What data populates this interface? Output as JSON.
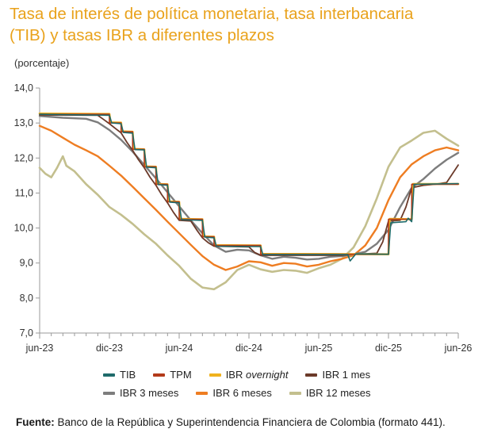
{
  "title_line1": "Tasa de interés de política monetaria, tasa interbancaria",
  "title_line2": "(TIB) y tasas IBR a diferentes plazos",
  "source_label": "Fuente:",
  "source_text": "Banco de la República y Superintendencia Financiera de Colombia (formato 441).",
  "chart_data": {
    "type": "line",
    "ylabel": "(porcentaje)",
    "ylim": [
      7.0,
      14.0
    ],
    "yticks": [
      "7,0",
      "8,0",
      "9,0",
      "10,0",
      "11,0",
      "12,0",
      "13,0",
      "14,0"
    ],
    "xticks": [
      "jun-23",
      "dic-23",
      "jun-24",
      "dic-24",
      "jun-25",
      "dic-25",
      "jun-26"
    ],
    "xrange_months": [
      "2023-06",
      "2026-06"
    ],
    "grid": false,
    "legend_position": "bottom",
    "series": [
      {
        "name": "TIB",
        "color": "#1f6b6b",
        "width": 1.6,
        "points": [
          [
            0,
            13.25
          ],
          [
            6,
            13.22
          ],
          [
            6.2,
            13.0
          ],
          [
            7,
            12.98
          ],
          [
            7.2,
            12.73
          ],
          [
            8,
            12.71
          ],
          [
            8.2,
            12.24
          ],
          [
            9,
            12.23
          ],
          [
            9.2,
            11.74
          ],
          [
            10,
            11.72
          ],
          [
            10.2,
            11.24
          ],
          [
            11,
            11.22
          ],
          [
            11.2,
            10.74
          ],
          [
            12,
            10.72
          ],
          [
            12.2,
            10.24
          ],
          [
            14,
            10.22
          ],
          [
            14.2,
            9.74
          ],
          [
            15,
            9.72
          ],
          [
            15.2,
            9.48
          ],
          [
            19,
            9.47
          ],
          [
            19.2,
            9.24
          ],
          [
            26.5,
            9.24
          ],
          [
            26.7,
            9.06
          ],
          [
            27,
            9.18
          ],
          [
            27.2,
            9.26
          ],
          [
            30,
            9.25
          ],
          [
            30.2,
            10.15
          ],
          [
            31.5,
            10.18
          ],
          [
            31.7,
            10.28
          ],
          [
            32,
            10.18
          ],
          [
            32.2,
            11.25
          ],
          [
            36,
            11.27
          ]
        ]
      },
      {
        "name": "TPM",
        "color": "#b33a1a",
        "width": 1.6,
        "points": [
          [
            0,
            13.25
          ],
          [
            6,
            13.25
          ],
          [
            6,
            13.0
          ],
          [
            7,
            13.0
          ],
          [
            7,
            12.75
          ],
          [
            8,
            12.75
          ],
          [
            8,
            12.25
          ],
          [
            9,
            12.25
          ],
          [
            9,
            11.75
          ],
          [
            10,
            11.75
          ],
          [
            10,
            11.25
          ],
          [
            11,
            11.25
          ],
          [
            11,
            10.75
          ],
          [
            12,
            10.75
          ],
          [
            12,
            10.25
          ],
          [
            14,
            10.25
          ],
          [
            14,
            9.75
          ],
          [
            15,
            9.75
          ],
          [
            15,
            9.5
          ],
          [
            19,
            9.5
          ],
          [
            19,
            9.25
          ],
          [
            30,
            9.25
          ],
          [
            30,
            10.25
          ],
          [
            32,
            10.25
          ],
          [
            32,
            11.25
          ],
          [
            36,
            11.25
          ]
        ]
      },
      {
        "name": "IBR overnight",
        "color": "#f0b21e",
        "width": 2.6,
        "points": [
          [
            0,
            13.27
          ],
          [
            6,
            13.26
          ],
          [
            6.1,
            13.02
          ],
          [
            7,
            13.01
          ],
          [
            7.1,
            12.76
          ],
          [
            8,
            12.75
          ],
          [
            8.1,
            12.26
          ],
          [
            9,
            12.25
          ],
          [
            9.1,
            11.76
          ],
          [
            10,
            11.75
          ],
          [
            10.1,
            11.26
          ],
          [
            11,
            11.25
          ],
          [
            11.1,
            10.76
          ],
          [
            12,
            10.75
          ],
          [
            12.1,
            10.26
          ],
          [
            14,
            10.25
          ],
          [
            14.1,
            9.76
          ],
          [
            15,
            9.75
          ],
          [
            15.1,
            9.51
          ],
          [
            19,
            9.5
          ],
          [
            19.1,
            9.26
          ],
          [
            30,
            9.25
          ],
          [
            30.1,
            10.26
          ],
          [
            32,
            10.25
          ],
          [
            32.1,
            11.26
          ],
          [
            36,
            11.26
          ]
        ]
      },
      {
        "name": "IBR 1 mes",
        "color": "#6b3a2a",
        "width": 1.8,
        "points": [
          [
            0,
            13.23
          ],
          [
            5,
            13.22
          ],
          [
            5.5,
            13.1
          ],
          [
            6,
            12.98
          ],
          [
            6.5,
            12.85
          ],
          [
            7,
            12.72
          ],
          [
            7.5,
            12.45
          ],
          [
            8,
            12.22
          ],
          [
            8.5,
            11.95
          ],
          [
            9,
            11.72
          ],
          [
            9.5,
            11.45
          ],
          [
            10,
            11.22
          ],
          [
            10.5,
            10.95
          ],
          [
            11,
            10.72
          ],
          [
            11.5,
            10.45
          ],
          [
            12,
            10.22
          ],
          [
            13,
            10.2
          ],
          [
            13.5,
            9.95
          ],
          [
            14,
            9.72
          ],
          [
            14.5,
            9.58
          ],
          [
            15,
            9.48
          ],
          [
            18,
            9.46
          ],
          [
            18.5,
            9.3
          ],
          [
            19,
            9.22
          ],
          [
            26,
            9.22
          ],
          [
            27,
            9.25
          ],
          [
            28,
            9.26
          ],
          [
            29,
            9.28
          ],
          [
            29.5,
            9.6
          ],
          [
            30,
            10.2
          ],
          [
            31,
            10.22
          ],
          [
            31.5,
            10.6
          ],
          [
            32,
            11.15
          ],
          [
            33,
            11.22
          ],
          [
            34,
            11.25
          ],
          [
            35,
            11.3
          ],
          [
            35.5,
            11.55
          ],
          [
            36,
            11.8
          ]
        ]
      },
      {
        "name": "IBR 3 meses",
        "color": "#7d7d7d",
        "width": 2.4,
        "points": [
          [
            0,
            13.2
          ],
          [
            2,
            13.15
          ],
          [
            4,
            13.12
          ],
          [
            5,
            13.02
          ],
          [
            6,
            12.8
          ],
          [
            7,
            12.52
          ],
          [
            8,
            12.18
          ],
          [
            9,
            11.8
          ],
          [
            10,
            11.42
          ],
          [
            11,
            11.02
          ],
          [
            12,
            10.62
          ],
          [
            13,
            10.22
          ],
          [
            14,
            9.85
          ],
          [
            15,
            9.5
          ],
          [
            16,
            9.32
          ],
          [
            17,
            9.38
          ],
          [
            18,
            9.36
          ],
          [
            19,
            9.22
          ],
          [
            20,
            9.12
          ],
          [
            21,
            9.18
          ],
          [
            22,
            9.15
          ],
          [
            23,
            9.1
          ],
          [
            24,
            9.12
          ],
          [
            25,
            9.18
          ],
          [
            26,
            9.2
          ],
          [
            27,
            9.25
          ],
          [
            28,
            9.32
          ],
          [
            29,
            9.55
          ],
          [
            30,
            9.95
          ],
          [
            31,
            10.6
          ],
          [
            32,
            11.15
          ],
          [
            33,
            11.4
          ],
          [
            34,
            11.7
          ],
          [
            35,
            11.95
          ],
          [
            36,
            12.15
          ]
        ]
      },
      {
        "name": "IBR 6 meses",
        "color": "#ee7d22",
        "width": 2.4,
        "points": [
          [
            0,
            12.92
          ],
          [
            1,
            12.78
          ],
          [
            2,
            12.58
          ],
          [
            3,
            12.38
          ],
          [
            4,
            12.22
          ],
          [
            5,
            12.05
          ],
          [
            6,
            11.78
          ],
          [
            7,
            11.5
          ],
          [
            8,
            11.18
          ],
          [
            9,
            10.85
          ],
          [
            10,
            10.52
          ],
          [
            11,
            10.18
          ],
          [
            12,
            9.85
          ],
          [
            13,
            9.52
          ],
          [
            14,
            9.2
          ],
          [
            15,
            8.95
          ],
          [
            16,
            8.8
          ],
          [
            17,
            8.9
          ],
          [
            18,
            9.05
          ],
          [
            19,
            9.02
          ],
          [
            20,
            8.92
          ],
          [
            21,
            9.0
          ],
          [
            22,
            8.98
          ],
          [
            23,
            8.9
          ],
          [
            24,
            8.95
          ],
          [
            25,
            9.05
          ],
          [
            26,
            9.12
          ],
          [
            27,
            9.22
          ],
          [
            28,
            9.5
          ],
          [
            29,
            10.0
          ],
          [
            30,
            10.8
          ],
          [
            31,
            11.45
          ],
          [
            32,
            11.82
          ],
          [
            33,
            12.05
          ],
          [
            34,
            12.22
          ],
          [
            35,
            12.3
          ],
          [
            36,
            12.22
          ]
        ]
      },
      {
        "name": "IBR 12 meses",
        "color": "#c3bf8e",
        "width": 2.6,
        "points": [
          [
            0,
            11.72
          ],
          [
            0.5,
            11.55
          ],
          [
            1,
            11.45
          ],
          [
            1.5,
            11.72
          ],
          [
            2,
            12.05
          ],
          [
            2.3,
            11.78
          ],
          [
            3,
            11.62
          ],
          [
            4,
            11.25
          ],
          [
            5,
            10.95
          ],
          [
            6,
            10.6
          ],
          [
            7,
            10.38
          ],
          [
            8,
            10.12
          ],
          [
            9,
            9.82
          ],
          [
            10,
            9.55
          ],
          [
            11,
            9.22
          ],
          [
            12,
            8.92
          ],
          [
            13,
            8.55
          ],
          [
            14,
            8.3
          ],
          [
            15,
            8.25
          ],
          [
            16,
            8.45
          ],
          [
            17,
            8.8
          ],
          [
            18,
            8.95
          ],
          [
            19,
            8.82
          ],
          [
            20,
            8.75
          ],
          [
            21,
            8.8
          ],
          [
            22,
            8.78
          ],
          [
            23,
            8.72
          ],
          [
            24,
            8.85
          ],
          [
            25,
            8.95
          ],
          [
            26,
            9.12
          ],
          [
            27,
            9.45
          ],
          [
            28,
            10.05
          ],
          [
            29,
            10.85
          ],
          [
            30,
            11.75
          ],
          [
            31,
            12.3
          ],
          [
            32,
            12.5
          ],
          [
            33,
            12.72
          ],
          [
            34,
            12.78
          ],
          [
            35,
            12.55
          ],
          [
            36,
            12.35
          ]
        ]
      }
    ],
    "legend": [
      [
        "TIB",
        "TPM",
        "IBR overnight",
        "IBR 1 mes"
      ],
      [
        "IBR 3 meses",
        "IBR 6 meses",
        "IBR 12 meses"
      ]
    ]
  }
}
